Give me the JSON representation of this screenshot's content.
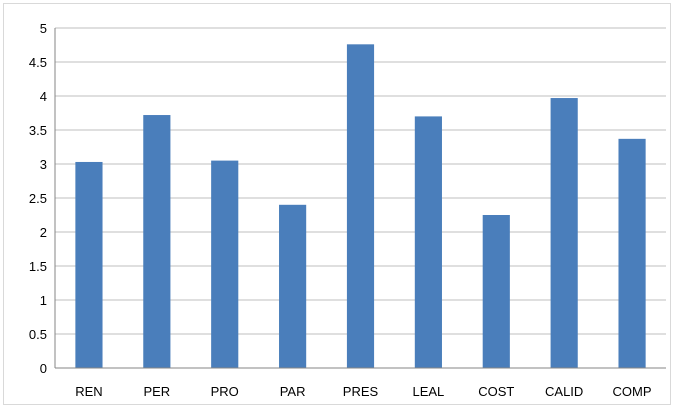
{
  "chart_data": {
    "type": "bar",
    "title": "",
    "xlabel": "",
    "ylabel": "",
    "categories": [
      "REN",
      "PER",
      "PRO",
      "PAR",
      "PRES",
      "LEAL",
      "COST",
      "CALID",
      "COMP"
    ],
    "values": [
      3.03,
      3.72,
      3.05,
      2.4,
      4.76,
      3.7,
      2.25,
      3.97,
      3.37
    ],
    "ylim": [
      0,
      5
    ],
    "yticks": [
      "0",
      "0.5",
      "1",
      "1.5",
      "2",
      "2.5",
      "3",
      "3.5",
      "4",
      "4.5",
      "5"
    ],
    "grid": true,
    "legend": "none",
    "bar_color": "#4a7ebb",
    "grid_color": "#bfbfbf"
  }
}
